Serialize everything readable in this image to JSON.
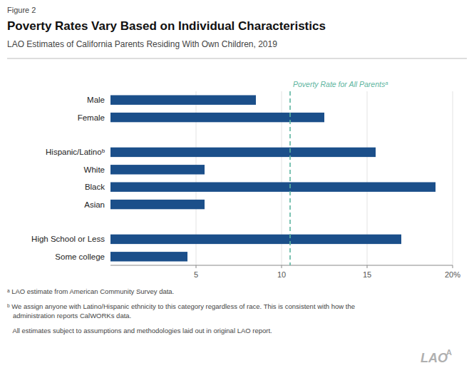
{
  "chart_data": {
    "type": "bar",
    "orientation": "horizontal",
    "figure_label": "Figure 2",
    "title": "Poverty Rates Vary Based on Individual Characteristics",
    "subtitle": "LAO Estimates of California Parents Residing With Own Children, 2019",
    "categories": [
      "Some college",
      "High School or Less",
      null,
      "Asian",
      "Black",
      "White",
      "Hispanic/Latinoᵇ",
      null,
      "Female",
      "Male"
    ],
    "values": [
      4.5,
      17.0,
      null,
      5.5,
      19.0,
      5.5,
      15.5,
      null,
      12.5,
      8.5
    ],
    "color": "#1B4F8A",
    "xlim": [
      0,
      20
    ],
    "xticks": [
      5,
      10,
      15,
      {
        "value": 20,
        "label": "20%"
      }
    ],
    "grid": true,
    "reference_line": {
      "value": 10.5,
      "label": "Poverty Rate for All Parentsᵃ",
      "color": "#5DB5A0"
    },
    "footnotes": [
      "ᵃ LAO estimate from American Community Survey data.",
      "ᵇ We assign anyone with Latino/Hispanic ethnicity to this category regardless of race. This is consistent with how the\n   administration reports CalWORKs data.",
      "   All estimates subject to assumptions and methodologies laid out in original LAO report."
    ],
    "watermark": [
      "LAO",
      "A"
    ]
  }
}
